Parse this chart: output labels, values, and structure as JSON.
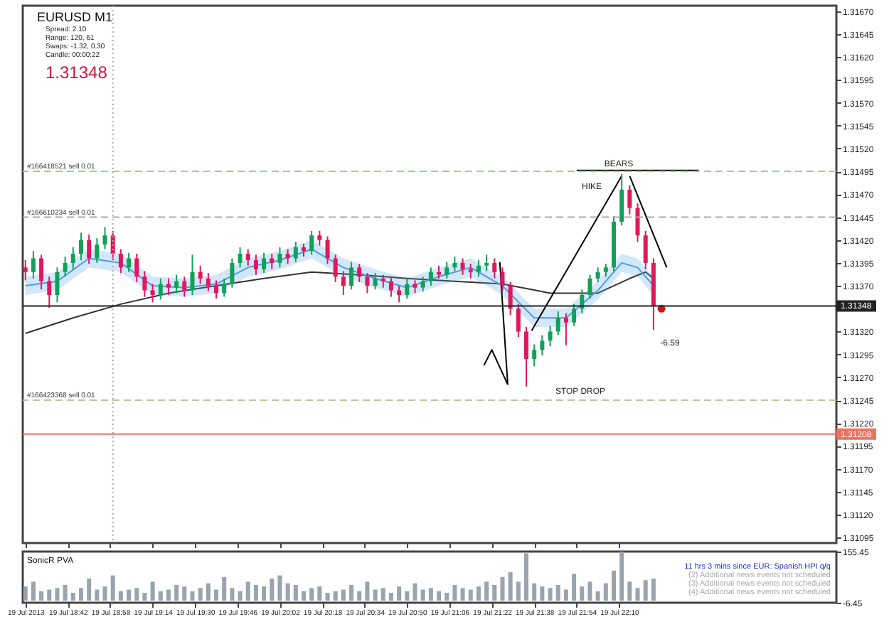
{
  "chart_data": [
    {
      "type": "candlestick",
      "title": "EURUSD  M1",
      "subtitle": "1.31348",
      "annotations": [
        "Spread: 2.10",
        "Range: 120, 61",
        "Swaps: -1.32, 0.30",
        "Candle: 00:00:22",
        "BEARS",
        "HIKE",
        "STOP DROP",
        "-6.59"
      ],
      "xticks": [
        {
          "value": "2013-07-19T18:26",
          "label": null
        },
        {
          "value": "2013-07-19T18:42",
          "label": null
        },
        {
          "value": "2013-07-19T18:58",
          "label": null
        },
        {
          "value": "2013-07-19T19:14",
          "label": null
        },
        {
          "value": "2013-07-19T19:30",
          "label": null
        },
        {
          "value": "2013-07-19T19:46",
          "label": null
        },
        {
          "value": "2013-07-19T20:02",
          "label": null
        },
        {
          "value": "2013-07-19T20:18",
          "label": null
        },
        {
          "value": "2013-07-19T20:34",
          "label": null
        },
        {
          "value": "2013-07-19T20:50",
          "label": null
        },
        {
          "value": "2013-07-19T21:06",
          "label": null
        },
        {
          "value": "2013-07-19T21:22",
          "label": null
        },
        {
          "value": "2013-07-19T21:38",
          "label": null
        },
        {
          "value": "2013-07-19T21:54",
          "label": null
        },
        {
          "value": "2013-07-19T22:10",
          "label": null
        }
      ],
      "x": [
        "2013-07-19T18:26",
        "2013-07-19T18:29",
        "2013-07-19T18:32",
        "2013-07-19T18:35",
        "2013-07-19T18:38",
        "2013-07-19T18:41",
        "2013-07-19T18:44",
        "2013-07-19T18:47",
        "2013-07-19T18:50",
        "2013-07-19T18:53",
        "2013-07-19T18:56",
        "2013-07-19T18:59",
        "2013-07-19T19:02",
        "2013-07-19T19:05",
        "2013-07-19T19:08",
        "2013-07-19T19:11",
        "2013-07-19T19:14",
        "2013-07-19T19:17",
        "2013-07-19T19:20",
        "2013-07-19T19:23",
        "2013-07-19T19:26",
        "2013-07-19T19:29",
        "2013-07-19T19:32",
        "2013-07-19T19:35",
        "2013-07-19T19:38",
        "2013-07-19T19:41",
        "2013-07-19T19:44",
        "2013-07-19T19:47",
        "2013-07-19T19:50",
        "2013-07-19T19:53",
        "2013-07-19T19:56",
        "2013-07-19T19:59",
        "2013-07-19T20:02",
        "2013-07-19T20:05",
        "2013-07-19T20:08",
        "2013-07-19T20:11",
        "2013-07-19T20:14",
        "2013-07-19T20:17",
        "2013-07-19T20:20",
        "2013-07-19T20:23",
        "2013-07-19T20:26",
        "2013-07-19T20:29",
        "2013-07-19T20:32",
        "2013-07-19T20:35",
        "2013-07-19T20:38",
        "2013-07-19T20:41",
        "2013-07-19T20:44",
        "2013-07-19T20:47",
        "2013-07-19T20:50",
        "2013-07-19T20:53",
        "2013-07-19T20:56",
        "2013-07-19T20:59",
        "2013-07-19T21:02",
        "2013-07-19T21:05",
        "2013-07-19T21:08",
        "2013-07-19T21:11",
        "2013-07-19T21:14",
        "2013-07-19T21:17",
        "2013-07-19T21:20",
        "2013-07-19T21:23",
        "2013-07-19T21:26",
        "2013-07-19T21:29",
        "2013-07-19T21:32",
        "2013-07-19T21:35",
        "2013-07-19T21:38",
        "2013-07-19T21:41",
        "2013-07-19T21:44",
        "2013-07-19T21:47",
        "2013-07-19T21:50",
        "2013-07-19T21:53",
        "2013-07-19T21:56",
        "2013-07-19T21:59",
        "2013-07-19T22:02",
        "2013-07-19T22:05",
        "2013-07-19T22:08",
        "2013-07-19T22:11",
        "2013-07-19T22:14",
        "2013-07-19T22:17",
        "2013-07-19T22:20",
        "2013-07-19T22:23"
      ],
      "ohlc": [
        [
          1.3139,
          1.31398,
          1.31376,
          1.31385
        ],
        [
          1.31385,
          1.31408,
          1.31378,
          1.314
        ],
        [
          1.314,
          1.31404,
          1.31366,
          1.31375
        ],
        [
          1.31375,
          1.3138,
          1.31346,
          1.3136
        ],
        [
          1.3136,
          1.3139,
          1.31352,
          1.31385
        ],
        [
          1.31385,
          1.31402,
          1.3138,
          1.31395
        ],
        [
          1.31395,
          1.31412,
          1.31388,
          1.31405
        ],
        [
          1.31405,
          1.31428,
          1.31398,
          1.3142
        ],
        [
          1.3142,
          1.31426,
          1.31394,
          1.314
        ],
        [
          1.314,
          1.31422,
          1.31395,
          1.31415
        ],
        [
          1.31415,
          1.31434,
          1.3141,
          1.31425
        ],
        [
          1.31425,
          1.3143,
          1.31398,
          1.31405
        ],
        [
          1.31405,
          1.3141,
          1.31384,
          1.3139
        ],
        [
          1.3139,
          1.31406,
          1.31385,
          1.314
        ],
        [
          1.314,
          1.31405,
          1.31374,
          1.3138
        ],
        [
          1.3138,
          1.31386,
          1.31358,
          1.31365
        ],
        [
          1.31365,
          1.31372,
          1.31352,
          1.3136
        ],
        [
          1.3136,
          1.31378,
          1.31355,
          1.31372
        ],
        [
          1.31372,
          1.31378,
          1.3136,
          1.31368
        ],
        [
          1.31368,
          1.31382,
          1.31362,
          1.31375
        ],
        [
          1.31375,
          1.3138,
          1.31358,
          1.31365
        ],
        [
          1.31365,
          1.31404,
          1.3136,
          1.31385
        ],
        [
          1.31385,
          1.31392,
          1.31372,
          1.31378
        ],
        [
          1.31378,
          1.31384,
          1.31364,
          1.3137
        ],
        [
          1.3137,
          1.31376,
          1.31356,
          1.31362
        ],
        [
          1.31362,
          1.31378,
          1.31358,
          1.31372
        ],
        [
          1.31372,
          1.314,
          1.31368,
          1.31395
        ],
        [
          1.31395,
          1.31412,
          1.3139,
          1.31405
        ],
        [
          1.31405,
          1.3141,
          1.31392,
          1.31398
        ],
        [
          1.31398,
          1.31404,
          1.31382,
          1.31388
        ],
        [
          1.31388,
          1.31406,
          1.31384,
          1.314
        ],
        [
          1.314,
          1.31405,
          1.31388,
          1.31395
        ],
        [
          1.31395,
          1.31412,
          1.3139,
          1.31405
        ],
        [
          1.31405,
          1.3141,
          1.31394,
          1.314
        ],
        [
          1.314,
          1.31418,
          1.31396,
          1.31412
        ],
        [
          1.31412,
          1.31416,
          1.31402,
          1.31408
        ],
        [
          1.31408,
          1.3143,
          1.31404,
          1.31425
        ],
        [
          1.31425,
          1.3143,
          1.31414,
          1.3142
        ],
        [
          1.3142,
          1.31424,
          1.31394,
          1.314
        ],
        [
          1.314,
          1.31404,
          1.31374,
          1.3138
        ],
        [
          1.3138,
          1.31386,
          1.3136,
          1.3137
        ],
        [
          1.3137,
          1.31396,
          1.31366,
          1.3139
        ],
        [
          1.3139,
          1.31394,
          1.31374,
          1.3138
        ],
        [
          1.3138,
          1.31384,
          1.31362,
          1.3137
        ],
        [
          1.3137,
          1.31384,
          1.31366,
          1.31378
        ],
        [
          1.31378,
          1.31382,
          1.31368,
          1.31375
        ],
        [
          1.31375,
          1.3138,
          1.31358,
          1.31365
        ],
        [
          1.31365,
          1.3137,
          1.31352,
          1.3136
        ],
        [
          1.3136,
          1.31378,
          1.31356,
          1.31372
        ],
        [
          1.31372,
          1.31376,
          1.31362,
          1.31368
        ],
        [
          1.31368,
          1.3138,
          1.31364,
          1.31375
        ],
        [
          1.31375,
          1.3139,
          1.3137,
          1.31385
        ],
        [
          1.31385,
          1.31392,
          1.31378,
          1.31382
        ],
        [
          1.31382,
          1.31396,
          1.31378,
          1.3139
        ],
        [
          1.3139,
          1.31402,
          1.31386,
          1.31395
        ],
        [
          1.31395,
          1.314,
          1.31382,
          1.31388
        ],
        [
          1.31388,
          1.31394,
          1.31378,
          1.31385
        ],
        [
          1.31385,
          1.31398,
          1.3138,
          1.31392
        ],
        [
          1.31392,
          1.31404,
          1.31386,
          1.31395
        ],
        [
          1.31395,
          1.314,
          1.31378,
          1.31385
        ],
        [
          1.31385,
          1.3139,
          1.31364,
          1.3137
        ],
        [
          1.3137,
          1.31374,
          1.31338,
          1.31345
        ],
        [
          1.31345,
          1.3135,
          1.31314,
          1.3132
        ],
        [
          1.3132,
          1.31325,
          1.3126,
          1.3129
        ],
        [
          1.3129,
          1.31306,
          1.31282,
          1.313
        ],
        [
          1.313,
          1.31316,
          1.31294,
          1.3131
        ],
        [
          1.3131,
          1.31326,
          1.31304,
          1.3132
        ],
        [
          1.3132,
          1.31342,
          1.31316,
          1.31335
        ],
        [
          1.31335,
          1.3134,
          1.31305,
          1.3133
        ],
        [
          1.3133,
          1.3135,
          1.31326,
          1.31345
        ],
        [
          1.31345,
          1.31366,
          1.3134,
          1.3136
        ],
        [
          1.3136,
          1.31382,
          1.31356,
          1.31378
        ],
        [
          1.31378,
          1.3139,
          1.31374,
          1.31385
        ],
        [
          1.31385,
          1.31394,
          1.3138,
          1.3139
        ],
        [
          1.3139,
          1.31446,
          1.31386,
          1.3144
        ],
        [
          1.3144,
          1.31492,
          1.31436,
          1.31475
        ],
        [
          1.31475,
          1.3148,
          1.31448,
          1.31455
        ],
        [
          1.31455,
          1.3146,
          1.31418,
          1.31425
        ],
        [
          1.31425,
          1.3143,
          1.31388,
          1.31395
        ],
        [
          1.31395,
          1.314,
          1.31322,
          1.31348
        ]
      ],
      "colors": [
        "#e0185c",
        "#12a058",
        "#e0185c",
        "#e0185c",
        "#12a058",
        "#12a058",
        "#12a058",
        "#12a058",
        "#e0185c",
        "#12a058",
        "#12a058",
        "#e0185c",
        "#e0185c",
        "#12a058",
        "#e0185c",
        "#e0185c",
        "#e0185c",
        "#12a058",
        "#e0185c",
        "#12a058",
        "#e0185c",
        "#12a058",
        "#e0185c",
        "#e0185c",
        "#e0185c",
        "#12a058",
        "#12a058",
        "#12a058",
        "#e0185c",
        "#e0185c",
        "#12a058",
        "#e0185c",
        "#12a058",
        "#e0185c",
        "#12a058",
        "#e0185c",
        "#12a058",
        "#e0185c",
        "#e0185c",
        "#e0185c",
        "#e0185c",
        "#12a058",
        "#e0185c",
        "#e0185c",
        "#12a058",
        "#e0185c",
        "#e0185c",
        "#e0185c",
        "#12a058",
        "#e0185c",
        "#12a058",
        "#12a058",
        "#e0185c",
        "#12a058",
        "#12a058",
        "#e0185c",
        "#e0185c",
        "#12a058",
        "#12a058",
        "#e0185c",
        "#e0185c",
        "#e0185c",
        "#e0185c",
        "#e0185c",
        "#12a058",
        "#12a058",
        "#12a058",
        "#12a058",
        "#e0185c",
        "#12a058",
        "#12a058",
        "#12a058",
        "#12a058",
        "#12a058",
        "#12a058",
        "#12a058",
        "#e0185c",
        "#e0185c",
        "#e0185c",
        "#e0185c"
      ],
      "series": [
        {
          "type": "line",
          "color": "#333333",
          "x": [
            "2013-07-19T18:26",
            "2013-07-19T18:44",
            "2013-07-19T19:02",
            "2013-07-19T19:20",
            "2013-07-19T19:38",
            "2013-07-19T19:56",
            "2013-07-19T20:14",
            "2013-07-19T20:32",
            "2013-07-19T20:50",
            "2013-07-19T21:08",
            "2013-07-19T21:26",
            "2013-07-19T21:44",
            "2013-07-19T22:02",
            "2013-07-19T22:14",
            "2013-07-19T22:20",
            "2013-07-19T22:23"
          ],
          "values": [
            1.31318,
            1.31335,
            1.3135,
            1.31362,
            1.3137,
            1.31378,
            1.31385,
            1.31382,
            1.31378,
            1.31375,
            1.31372,
            1.31362,
            1.31362,
            1.31378,
            1.31385,
            1.31378
          ]
        },
        {
          "type": "line",
          "color": "#4a9ee8",
          "x": [
            "2013-07-19T18:26",
            "2013-07-19T18:38",
            "2013-07-19T18:50",
            "2013-07-19T19:02",
            "2013-07-19T19:14",
            "2013-07-19T19:26",
            "2013-07-19T19:38",
            "2013-07-19T19:50",
            "2013-07-19T20:02",
            "2013-07-19T20:14",
            "2013-07-19T20:26",
            "2013-07-19T20:38",
            "2013-07-19T20:50",
            "2013-07-19T21:02",
            "2013-07-19T21:14",
            "2013-07-19T21:26",
            "2013-07-19T21:38",
            "2013-07-19T21:50",
            "2013-07-19T22:02",
            "2013-07-19T22:11",
            "2013-07-19T22:17",
            "2013-07-19T22:23"
          ],
          "values": [
            1.3137,
            1.31375,
            1.314,
            1.31395,
            1.3137,
            1.31368,
            1.31372,
            1.3139,
            1.31398,
            1.3141,
            1.3139,
            1.31378,
            1.31368,
            1.3138,
            1.3139,
            1.3137,
            1.31335,
            1.31335,
            1.31365,
            1.31395,
            1.3139,
            1.3137
          ],
          "lower": [
            1.3136,
            1.31365,
            1.3139,
            1.31385,
            1.3136,
            1.31358,
            1.31362,
            1.3138,
            1.31388,
            1.314,
            1.3138,
            1.31368,
            1.31358,
            1.3137,
            1.3138,
            1.3136,
            1.31325,
            1.31325,
            1.31355,
            1.31385,
            1.3138,
            1.3136
          ],
          "upper": [
            1.3138,
            1.31385,
            1.3141,
            1.31405,
            1.3138,
            1.31378,
            1.31382,
            1.314,
            1.31408,
            1.3142,
            1.314,
            1.31388,
            1.31378,
            1.3139,
            1.314,
            1.3138,
            1.31345,
            1.31345,
            1.31375,
            1.31405,
            1.314,
            1.3138
          ]
        },
        {
          "type": "line",
          "color": "#000000",
          "x": [
            "2013-07-19T21:25",
            "2013-07-19T21:28"
          ],
          "values": [
            1.31396,
            1.31262
          ]
        },
        {
          "type": "line",
          "color": "#000000",
          "x": [
            "2013-07-19T21:22",
            "2013-07-19T21:19",
            "2013-07-19T21:28"
          ],
          "values": [
            1.313,
            1.31283,
            1.31262
          ]
        },
        {
          "type": "line",
          "color": "#000000",
          "x": [
            "2013-07-19T21:37",
            "2013-07-19T22:11"
          ],
          "values": [
            1.31321,
            1.3149
          ]
        },
        {
          "type": "line",
          "color": "#000000",
          "x": [
            "2013-07-19T22:14",
            "2013-07-19T22:28"
          ],
          "values": [
            1.3149,
            1.3139
          ]
        },
        {
          "type": "line",
          "color": "#000000",
          "x": [
            "2013-07-19T21:54",
            "2013-07-19T22:40"
          ],
          "values": [
            1.31496,
            1.31496
          ]
        },
        {
          "type": "scatter",
          "color": "#e01010",
          "marker": "circle",
          "x": [
            "2013-07-19T22:26"
          ],
          "values": [
            1.31345
          ]
        }
      ],
      "ref_lines": [
        {
          "axis": "x",
          "value": "2013-07-19T18:59",
          "color": "#aaaaaa",
          "line_style": "dotted"
        },
        {
          "axis": "y",
          "value": 1.31495,
          "label": "#166418521 sell 0.01",
          "color": "#9ccf9c",
          "line_style": "dashed"
        },
        {
          "axis": "y",
          "value": 1.31445,
          "label": "#166610234 sell 0.01",
          "color": "#aaaaaa",
          "line_style": "dashed"
        },
        {
          "axis": "y",
          "value": 1.31245,
          "label": "#166423368 sell 0.01",
          "color": "#c8bfa0",
          "line_style": "dashed"
        },
        {
          "axis": "y",
          "value": 1.31348,
          "label": "1.31348",
          "color": "#222222",
          "line_style": "solid"
        },
        {
          "axis": "y",
          "value": 1.31208,
          "label": "1.31208",
          "color": "#f07060",
          "line_style": "solid"
        }
      ],
      "xlim": [
        "2013-07-19T18:25",
        "2013-07-19T23:32"
      ],
      "ylim": [
        1.31089,
        1.31676
      ],
      "yticks": [
        {
          "value": 1.3167,
          "label": "1.31670"
        },
        {
          "value": 1.31645,
          "label": "1.31645"
        },
        {
          "value": 1.3162,
          "label": "1.31620"
        },
        {
          "value": 1.31595,
          "label": "1.31595"
        },
        {
          "value": 1.3157,
          "label": "1.31570"
        },
        {
          "value": 1.31545,
          "label": "1.31545"
        },
        {
          "value": 1.3152,
          "label": "1.31520"
        },
        {
          "value": 1.31495,
          "label": "1.31495"
        },
        {
          "value": 1.3147,
          "label": "1.31470"
        },
        {
          "value": 1.31445,
          "label": "1.31445"
        },
        {
          "value": 1.3142,
          "label": "1.31420"
        },
        {
          "value": 1.31395,
          "label": "1.31395"
        },
        {
          "value": 1.3137,
          "label": "1.31370"
        },
        {
          "value": 1.3132,
          "label": "1.31320"
        },
        {
          "value": 1.31295,
          "label": "1.31295"
        },
        {
          "value": 1.3127,
          "label": "1.31270"
        },
        {
          "value": 1.31245,
          "label": "1.31245"
        },
        {
          "value": 1.3122,
          "label": "1.31220"
        },
        {
          "value": 1.31195,
          "label": "1.31195"
        },
        {
          "value": 1.3117,
          "label": "1.31170"
        },
        {
          "value": 1.31145,
          "label": "1.31145"
        },
        {
          "value": 1.3112,
          "label": "1.31120"
        },
        {
          "value": 1.31095,
          "label": "1.31095"
        }
      ],
      "tick_labels": "y"
    },
    {
      "type": "bar",
      "title": "SonicR PVA",
      "color": "#9aa3ae",
      "annotations": [
        "11 hrs 3 mins since EUR: Spanish HPI q/q",
        "(2) Additional news events not scheduled",
        "(3) Additional news events not scheduled",
        "(4) Additional news events not scheduled"
      ],
      "x": [
        "2013-07-19T18:26",
        "2013-07-19T18:29",
        "2013-07-19T18:32",
        "2013-07-19T18:35",
        "2013-07-19T18:38",
        "2013-07-19T18:41",
        "2013-07-19T18:44",
        "2013-07-19T18:47",
        "2013-07-19T18:50",
        "2013-07-19T18:53",
        "2013-07-19T18:56",
        "2013-07-19T18:59",
        "2013-07-19T19:02",
        "2013-07-19T19:05",
        "2013-07-19T19:08",
        "2013-07-19T19:11",
        "2013-07-19T19:14",
        "2013-07-19T19:17",
        "2013-07-19T19:20",
        "2013-07-19T19:23",
        "2013-07-19T19:26",
        "2013-07-19T19:29",
        "2013-07-19T19:32",
        "2013-07-19T19:35",
        "2013-07-19T19:38",
        "2013-07-19T19:41",
        "2013-07-19T19:44",
        "2013-07-19T19:47",
        "2013-07-19T19:50",
        "2013-07-19T19:53",
        "2013-07-19T19:56",
        "2013-07-19T19:59",
        "2013-07-19T20:02",
        "2013-07-19T20:05",
        "2013-07-19T20:08",
        "2013-07-19T20:11",
        "2013-07-19T20:14",
        "2013-07-19T20:17",
        "2013-07-19T20:20",
        "2013-07-19T20:23",
        "2013-07-19T20:26",
        "2013-07-19T20:29",
        "2013-07-19T20:32",
        "2013-07-19T20:35",
        "2013-07-19T20:38",
        "2013-07-19T20:41",
        "2013-07-19T20:44",
        "2013-07-19T20:47",
        "2013-07-19T20:50",
        "2013-07-19T20:53",
        "2013-07-19T20:56",
        "2013-07-19T20:59",
        "2013-07-19T21:02",
        "2013-07-19T21:05",
        "2013-07-19T21:08",
        "2013-07-19T21:11",
        "2013-07-19T21:14",
        "2013-07-19T21:17",
        "2013-07-19T21:20",
        "2013-07-19T21:23",
        "2013-07-19T21:26",
        "2013-07-19T21:29",
        "2013-07-19T21:32",
        "2013-07-19T21:35",
        "2013-07-19T21:38",
        "2013-07-19T21:41",
        "2013-07-19T21:44",
        "2013-07-19T21:47",
        "2013-07-19T21:50",
        "2013-07-19T21:53",
        "2013-07-19T21:56",
        "2013-07-19T21:59",
        "2013-07-19T22:02",
        "2013-07-19T22:05",
        "2013-07-19T22:08",
        "2013-07-19T22:11",
        "2013-07-19T22:14",
        "2013-07-19T22:17",
        "2013-07-19T22:20",
        "2013-07-19T22:23"
      ],
      "values": [
        45,
        60,
        30,
        35,
        40,
        50,
        25,
        40,
        70,
        35,
        45,
        80,
        30,
        35,
        40,
        25,
        60,
        30,
        35,
        50,
        45,
        30,
        40,
        55,
        35,
        75,
        40,
        30,
        60,
        50,
        45,
        70,
        80,
        55,
        50,
        30,
        40,
        45,
        25,
        30,
        35,
        50,
        30,
        60,
        35,
        40,
        25,
        45,
        30,
        55,
        35,
        40,
        30,
        25,
        50,
        40,
        35,
        45,
        60,
        50,
        75,
        90,
        60,
        150,
        55,
        45,
        40,
        50,
        35,
        85,
        45,
        60,
        30,
        55,
        95,
        155,
        60,
        40,
        65,
        70
      ],
      "xlim": [
        "2013-07-19T18:25",
        "2013-07-19T23:32"
      ],
      "ylim": [
        -6.45,
        155.45
      ],
      "yticks": [
        155.45,
        -6.45
      ],
      "xticks": [
        {
          "value": "2013-07-19T18:26",
          "label": "19 Jul 2013"
        },
        {
          "value": "2013-07-19T18:42",
          "label": "19 Jul 18:42"
        },
        {
          "value": "2013-07-19T18:58",
          "label": "19 Jul 18:58"
        },
        {
          "value": "2013-07-19T19:14",
          "label": "19 Jul 19:14"
        },
        {
          "value": "2013-07-19T19:30",
          "label": "19 Jul 19:30"
        },
        {
          "value": "2013-07-19T19:46",
          "label": "19 Jul 19:46"
        },
        {
          "value": "2013-07-19T20:02",
          "label": "19 Jul 20:02"
        },
        {
          "value": "2013-07-19T20:18",
          "label": "19 Jul 20:18"
        },
        {
          "value": "2013-07-19T20:34",
          "label": "19 Jul 20:34"
        },
        {
          "value": "2013-07-19T20:50",
          "label": "19 Jul 20:50"
        },
        {
          "value": "2013-07-19T21:06",
          "label": "19 Jul 21:06"
        },
        {
          "value": "2013-07-19T21:22",
          "label": "19 Jul 21:22"
        },
        {
          "value": "2013-07-19T21:38",
          "label": "19 Jul 21:38"
        },
        {
          "value": "2013-07-19T21:54",
          "label": "19 Jul 21:54"
        },
        {
          "value": "2013-07-19T22:10",
          "label": "19 Jul 22:10"
        }
      ]
    }
  ]
}
